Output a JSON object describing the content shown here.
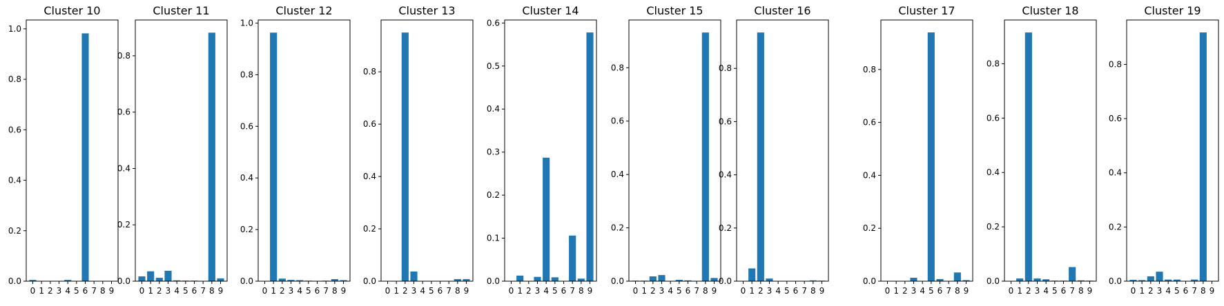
{
  "bar_color": "#1f77b4",
  "chart_data": [
    {
      "type": "bar",
      "title": "Cluster 10",
      "categories": [
        "0",
        "1",
        "2",
        "3",
        "4",
        "5",
        "6",
        "7",
        "8",
        "9"
      ],
      "values": [
        0.005,
        0.0,
        0.0,
        0.0,
        0.005,
        0.0,
        0.982,
        0.0,
        0.0,
        0.0
      ],
      "ylim": [
        0,
        1.035
      ],
      "yticks": [
        0.0,
        0.2,
        0.4,
        0.6,
        0.8,
        1.0
      ],
      "ytick_labels": [
        "0.0",
        "0.2",
        "0.4",
        "0.6",
        "0.8",
        "1.0"
      ]
    },
    {
      "type": "bar",
      "title": "Cluster 11",
      "categories": [
        "0",
        "1",
        "2",
        "3",
        "4",
        "5",
        "6",
        "7",
        "8",
        "9"
      ],
      "values": [
        0.017,
        0.035,
        0.012,
        0.037,
        0.003,
        0.002,
        0.002,
        0.0,
        0.882,
        0.01
      ],
      "ylim": [
        0,
        0.927
      ],
      "yticks": [
        0.0,
        0.2,
        0.4,
        0.6,
        0.8
      ],
      "ytick_labels": [
        "0.0",
        "0.2",
        "0.4",
        "0.6",
        "0.8"
      ]
    },
    {
      "type": "bar",
      "title": "Cluster 12",
      "categories": [
        "0",
        "1",
        "2",
        "3",
        "4",
        "5",
        "6",
        "7",
        "8",
        "9"
      ],
      "values": [
        0.0,
        0.963,
        0.01,
        0.005,
        0.004,
        0.002,
        0.0,
        0.002,
        0.008,
        0.004
      ],
      "ylim": [
        0,
        1.012
      ],
      "yticks": [
        0.0,
        0.2,
        0.4,
        0.6,
        0.8,
        1.0
      ],
      "ytick_labels": [
        "0.0",
        "0.2",
        "0.4",
        "0.6",
        "0.8",
        "1.0"
      ]
    },
    {
      "type": "bar",
      "title": "Cluster 13",
      "categories": [
        "0",
        "1",
        "2",
        "3",
        "4",
        "5",
        "6",
        "7",
        "8",
        "9"
      ],
      "values": [
        0.0,
        0.0,
        0.95,
        0.037,
        0.0,
        0.0,
        0.0,
        0.0,
        0.008,
        0.008
      ],
      "ylim": [
        0,
        0.998
      ],
      "yticks": [
        0.0,
        0.2,
        0.4,
        0.6,
        0.8
      ],
      "ytick_labels": [
        "0.0",
        "0.2",
        "0.4",
        "0.6",
        "0.8"
      ]
    },
    {
      "type": "bar",
      "title": "Cluster 14",
      "categories": [
        "0",
        "1",
        "2",
        "3",
        "4",
        "5",
        "6",
        "7",
        "8",
        "9"
      ],
      "values": [
        0.0,
        0.013,
        0.0,
        0.01,
        0.287,
        0.009,
        0.0,
        0.106,
        0.006,
        0.578
      ],
      "ylim": [
        0,
        0.607
      ],
      "yticks": [
        0.0,
        0.1,
        0.2,
        0.3,
        0.4,
        0.5,
        0.6
      ],
      "ytick_labels": [
        "0.0",
        "0.1",
        "0.2",
        "0.3",
        "0.4",
        "0.5",
        "0.6"
      ]
    },
    {
      "type": "bar",
      "title": "Cluster 15",
      "categories": [
        "0",
        "1",
        "2",
        "3",
        "4",
        "5",
        "6",
        "7",
        "8",
        "9"
      ],
      "values": [
        0.002,
        0.002,
        0.018,
        0.023,
        0.0,
        0.005,
        0.003,
        0.0,
        0.932,
        0.012
      ],
      "ylim": [
        0,
        0.979
      ],
      "yticks": [
        0.0,
        0.2,
        0.4,
        0.6,
        0.8
      ],
      "ytick_labels": [
        "0.0",
        "0.2",
        "0.4",
        "0.6",
        "0.8"
      ]
    },
    {
      "type": "bar",
      "title": "Cluster 16",
      "categories": [
        "0",
        "1",
        "2",
        "3",
        "4",
        "5",
        "6",
        "7",
        "8",
        "9"
      ],
      "values": [
        0.0,
        0.048,
        0.935,
        0.01,
        0.0,
        0.0,
        0.0,
        0.0,
        0.003,
        0.002
      ],
      "ylim": [
        0,
        0.982
      ],
      "yticks": [
        0.0,
        0.2,
        0.4,
        0.6,
        0.8
      ],
      "ytick_labels": [
        "0.0",
        "0.2",
        "0.4",
        "0.6",
        "0.8"
      ]
    },
    {
      "type": "bar",
      "title": "Cluster 17",
      "categories": [
        "0",
        "1",
        "2",
        "3",
        "4",
        "5",
        "6",
        "7",
        "8",
        "9"
      ],
      "values": [
        0.0,
        0.0,
        0.0,
        0.013,
        0.0,
        0.94,
        0.008,
        0.0,
        0.033,
        0.004
      ],
      "ylim": [
        0,
        0.987
      ],
      "yticks": [
        0.0,
        0.2,
        0.4,
        0.6,
        0.8
      ],
      "ytick_labels": [
        "0.0",
        "0.2",
        "0.4",
        "0.6",
        "0.8"
      ]
    },
    {
      "type": "bar",
      "title": "Cluster 18",
      "categories": [
        "0",
        "1",
        "2",
        "3",
        "4",
        "5",
        "6",
        "7",
        "8",
        "9"
      ],
      "values": [
        0.0,
        0.01,
        0.915,
        0.01,
        0.007,
        0.002,
        0.002,
        0.052,
        0.003,
        0.002
      ],
      "ylim": [
        0,
        0.961
      ],
      "yticks": [
        0.0,
        0.2,
        0.4,
        0.6,
        0.8
      ],
      "ytick_labels": [
        "0.0",
        "0.2",
        "0.4",
        "0.6",
        "0.8"
      ]
    },
    {
      "type": "bar",
      "title": "Cluster 19",
      "categories": [
        "0",
        "1",
        "2",
        "3",
        "4",
        "5",
        "6",
        "7",
        "8",
        "9"
      ],
      "values": [
        0.005,
        0.004,
        0.018,
        0.035,
        0.006,
        0.006,
        0.0,
        0.006,
        0.918,
        0.0
      ],
      "ylim": [
        0,
        0.964
      ],
      "yticks": [
        0.0,
        0.2,
        0.4,
        0.6,
        0.8
      ],
      "ytick_labels": [
        "0.0",
        "0.2",
        "0.4",
        "0.6",
        "0.8"
      ]
    }
  ]
}
